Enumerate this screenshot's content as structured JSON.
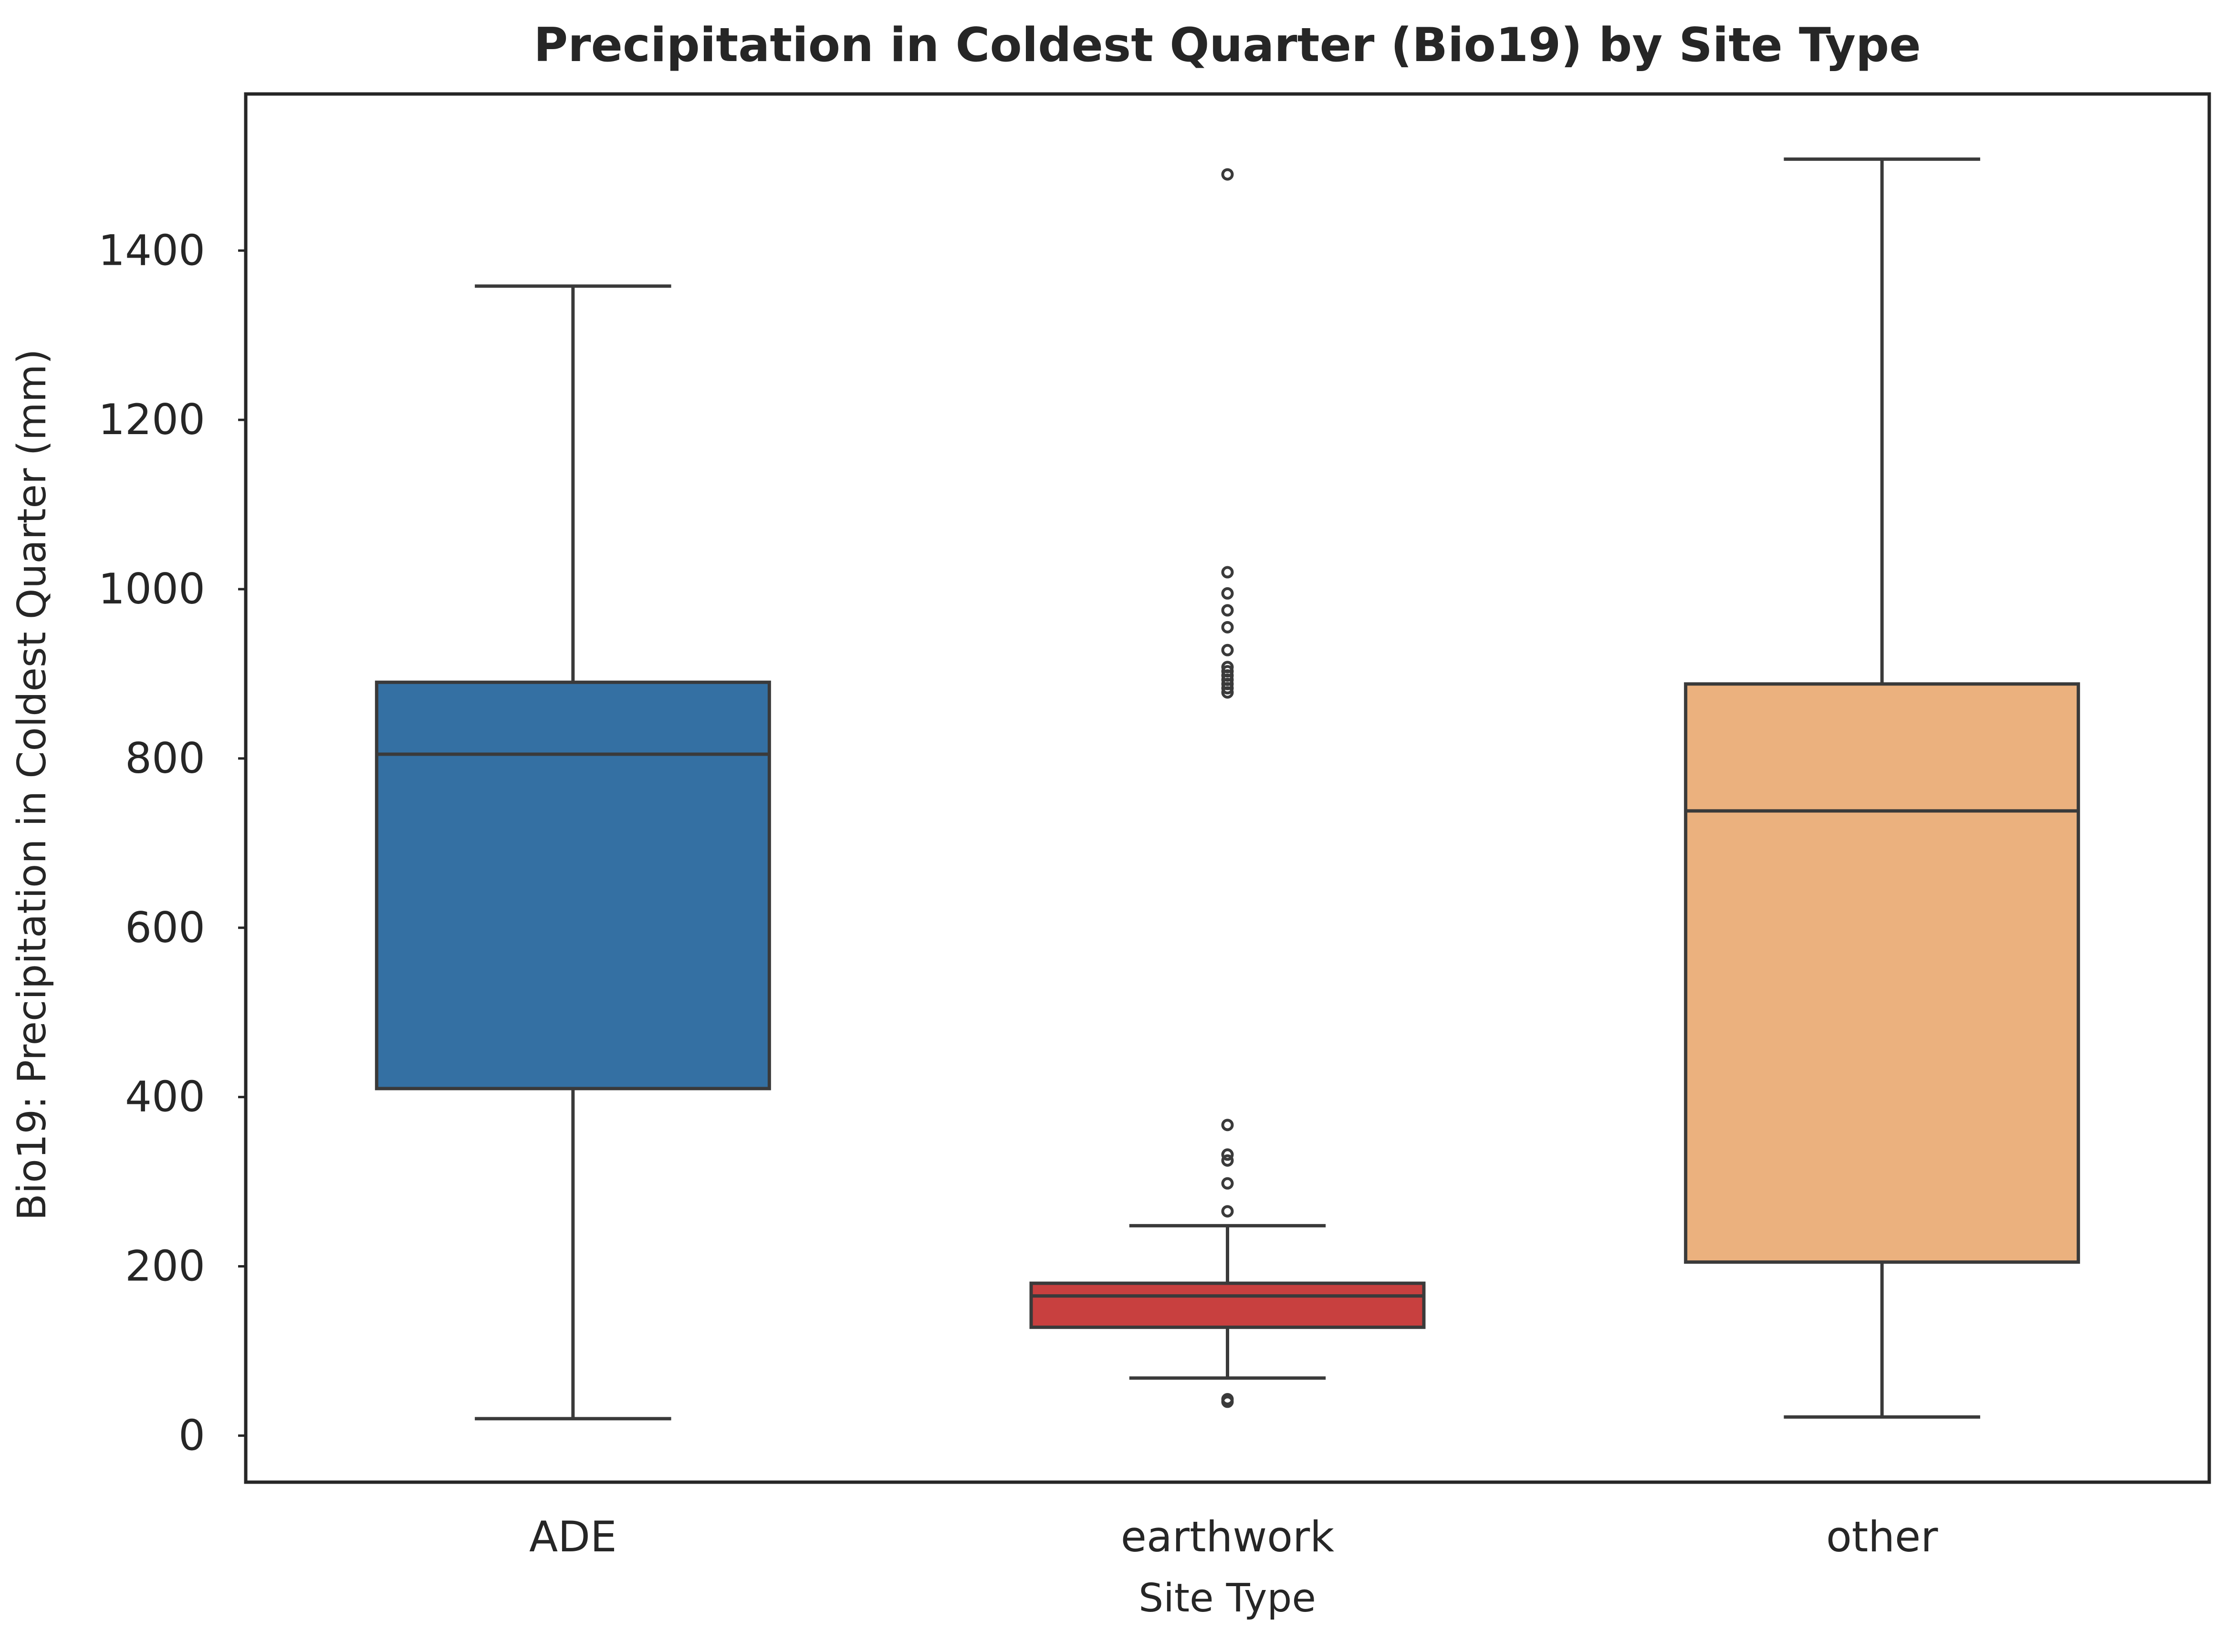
{
  "chart_data": {
    "type": "box",
    "title": "Precipitation in Coldest Quarter  (Bio19) by Site Type",
    "xlabel": "Site Type",
    "ylabel": "Bio19: Precipitation in Coldest Quarter (mm)",
    "ylim": [
      -55,
      1585
    ],
    "yticks": [
      0,
      200,
      400,
      600,
      800,
      1000,
      1200,
      1400
    ],
    "grid": false,
    "legend": "none",
    "categories": [
      "ADE",
      "earthwork",
      "other"
    ],
    "boxes": [
      {
        "category": "ADE",
        "color": "#3470a3",
        "whisker_low": 20,
        "q1": 410,
        "median": 805,
        "q3": 890,
        "whisker_high": 1358,
        "outliers": []
      },
      {
        "category": "earthwork",
        "color": "#c8403f",
        "whisker_low": 68,
        "q1": 128,
        "median": 165,
        "q3": 180,
        "whisker_high": 248,
        "outliers": [
          40,
          43,
          265,
          298,
          325,
          332,
          367,
          878,
          883,
          888,
          893,
          898,
          903,
          908,
          928,
          955,
          975,
          995,
          1020,
          1490
        ]
      },
      {
        "category": "other",
        "color": "#ebb17e",
        "whisker_low": 22,
        "q1": 205,
        "median": 738,
        "q3": 888,
        "whisker_high": 1508,
        "outliers": []
      }
    ]
  }
}
